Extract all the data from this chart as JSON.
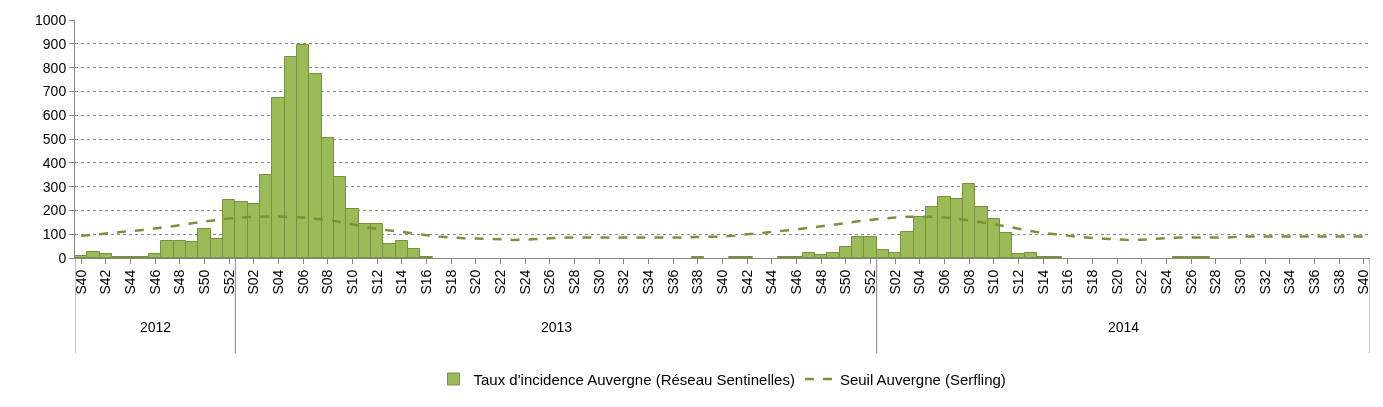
{
  "chart_data": {
    "type": "bar",
    "categories": [
      "S40",
      null,
      "S42",
      null,
      "S44",
      null,
      "S46",
      null,
      "S48",
      null,
      "S50",
      null,
      "S52",
      null,
      "S02",
      null,
      "S04",
      null,
      "S06",
      null,
      "S08",
      null,
      "S10",
      null,
      "S12",
      null,
      "S14",
      null,
      "S16",
      null,
      "S18",
      null,
      "S20",
      null,
      "S22",
      null,
      "S24",
      null,
      "S26",
      null,
      "S28",
      null,
      "S30",
      null,
      "S32",
      null,
      "S34",
      null,
      "S36",
      null,
      "S38",
      null,
      "S40",
      null,
      "S42",
      null,
      "S44",
      null,
      "S46",
      null,
      "S48",
      null,
      "S50",
      null,
      "S52",
      null,
      "S02",
      null,
      "S04",
      null,
      "S06",
      null,
      "S08",
      null,
      "S10",
      null,
      "S12",
      null,
      "S14",
      null,
      "S16",
      null,
      "S18",
      null,
      "S20",
      null,
      "S22",
      null,
      "S24",
      null,
      "S26",
      null,
      "S28",
      null,
      "S30",
      null,
      "S32",
      null,
      "S34",
      null,
      "S36",
      null,
      "S38",
      null,
      "S40"
    ],
    "series": [
      {
        "name": "Taux d'incidence Auvergne (Réseau Sentinelles)",
        "color": "#9bbb59",
        "values": [
          10,
          27,
          16,
          5,
          5,
          5,
          16,
          73,
          73,
          66,
          122,
          81,
          243,
          236,
          228,
          349,
          674,
          846,
          895,
          773,
          504,
          340,
          207,
          143,
          143,
          60,
          71,
          37,
          5,
          0,
          0,
          0,
          0,
          0,
          0,
          0,
          0,
          0,
          0,
          0,
          0,
          0,
          0,
          0,
          0,
          0,
          0,
          0,
          0,
          0,
          3,
          0,
          0,
          3,
          3,
          0,
          0,
          3,
          3,
          23,
          13,
          23,
          47,
          87,
          87,
          32,
          23,
          109,
          173,
          213,
          256,
          247,
          311,
          216,
          165,
          104,
          16,
          23,
          5,
          3,
          0,
          0,
          0,
          0,
          0,
          0,
          0,
          0,
          0,
          3,
          3,
          3,
          0,
          0,
          0,
          0,
          0,
          0,
          0,
          0,
          0,
          0,
          0,
          0,
          0
        ]
      },
      {
        "name": "Seuil Auvergne (Serfling)",
        "type": "line",
        "line_style": "dashed",
        "color": "#77933c",
        "values": [
          93,
          98,
          103,
          108,
          113,
          118,
          124,
          131,
          138,
          146,
          153,
          160,
          166,
          170,
          173,
          174,
          174,
          173,
          170,
          165,
          160,
          151,
          142,
          130,
          122,
          116,
          110,
          103,
          96,
          90,
          86,
          83,
          82,
          81,
          79,
          76,
          77,
          80,
          83,
          86,
          86,
          86,
          86,
          86,
          86,
          86,
          86,
          86,
          86,
          86,
          88,
          89,
          90,
          94,
          100,
          104,
          110,
          115,
          120,
          127,
          133,
          140,
          147,
          154,
          160,
          166,
          170,
          173,
          174,
          173,
          170,
          165,
          157,
          150,
          142,
          133,
          123,
          113,
          105,
          100,
          94,
          88,
          84,
          81,
          78,
          76,
          77,
          80,
          83,
          86,
          86,
          86,
          86,
          86,
          90,
          90,
          90,
          90,
          90,
          90,
          90,
          90,
          90,
          90,
          90
        ]
      }
    ],
    "annotations": [
      "2012",
      "2013",
      "2014"
    ],
    "ylim": [
      0,
      1000
    ],
    "yticks": [
      0,
      100,
      200,
      300,
      400,
      500,
      600,
      700,
      800,
      900,
      1000
    ],
    "grid": "y",
    "legend": "bottom"
  }
}
